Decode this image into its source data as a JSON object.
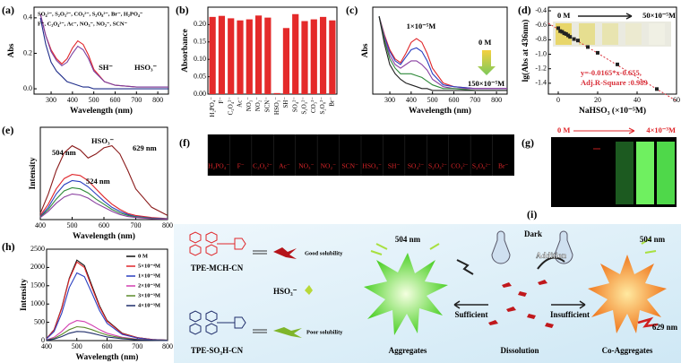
{
  "chart_data": [
    {
      "label": "(a)",
      "type": "line",
      "xlabel": "Wavelength (nm)",
      "ylabel": "Abs",
      "xlim": [
        220,
        850
      ],
      "xticks": [
        300,
        400,
        500,
        600,
        700,
        800
      ],
      "ylim": [
        -0.03,
        0.46
      ],
      "yticks": [
        {
          "value": 0,
          "label": "0.0"
        },
        0.2,
        0.4
      ],
      "annotations": [
        "SO₄²⁻, S₂O₃²⁻, CO₃²⁻, S₂O₈²⁻, Br⁻, H₂PO₄⁻",
        "F⁻, C₂O₄²⁻, Ac⁻, NO₃⁻, NO₂⁻, SCN⁻",
        "SH⁻",
        "HSO₃⁻"
      ],
      "x": [
        250,
        275,
        300,
        325,
        350,
        375,
        400,
        425,
        450,
        475,
        500,
        550,
        600,
        700,
        800,
        850
      ],
      "series": [
        {
          "color": "#e0262a",
          "values": [
            0.42,
            0.3,
            0.22,
            0.17,
            0.14,
            0.17,
            0.23,
            0.27,
            0.25,
            0.19,
            0.11,
            0.04,
            0.02,
            0.01,
            0.01,
            0.01
          ]
        },
        {
          "color": "#7a3fa0",
          "values": [
            0.42,
            0.3,
            0.21,
            0.16,
            0.13,
            0.15,
            0.2,
            0.24,
            0.22,
            0.17,
            0.1,
            0.04,
            0.02,
            0.01,
            0.01,
            0.01
          ]
        },
        {
          "color": "#1f2d8a",
          "values": [
            0.4,
            0.25,
            0.15,
            0.1,
            0.07,
            0.04,
            0.03,
            0.02,
            0.01,
            0.01,
            0,
            0,
            0,
            0,
            0,
            0
          ]
        }
      ]
    },
    {
      "label": "(b)",
      "type": "bar",
      "ylabel": "Absorbance",
      "color": "#e42a2a",
      "ylim": [
        0,
        0.25
      ],
      "yticks": [
        {
          "value": 0,
          "label": "0.00"
        },
        {
          "value": 0.05,
          "label": "0.05"
        },
        {
          "value": 0.1,
          "label": "0.10"
        },
        {
          "value": 0.15,
          "label": "0.15"
        },
        {
          "value": 0.2,
          "label": "0.20"
        }
      ],
      "categories": [
        "H₂PO₄⁻",
        "F⁻",
        "C₂O₄²⁻",
        "Ac⁻",
        "NO₃⁻",
        "NO₂⁻",
        "SCN⁻",
        "HSO₃⁻",
        "SH⁻",
        "SO₄²⁻",
        "S₂O₃²⁻",
        "CO₃²⁻",
        "S₂O₈²⁻",
        "Br⁻"
      ],
      "values": [
        0.222,
        0.225,
        0.218,
        0.212,
        0.215,
        0.226,
        0.22,
        0.003,
        0.19,
        0.23,
        0.21,
        0.215,
        0.222,
        0.212
      ]
    },
    {
      "label": "(c)",
      "type": "line",
      "xlabel": "Wavelength (nm)",
      "ylabel": "Abs",
      "xlim": [
        220,
        850
      ],
      "xticks": [
        300,
        400,
        500,
        600,
        700,
        800
      ],
      "ylim": [
        -0.02,
        0.45
      ],
      "annotations": [
        "1×10⁻⁵M",
        "0 M",
        "150×10⁻⁵M"
      ],
      "x": [
        250,
        275,
        300,
        325,
        350,
        375,
        400,
        425,
        450,
        475,
        500,
        550,
        600,
        700,
        800,
        850
      ],
      "series": [
        {
          "color": "#e0262a",
          "values": [
            0.4,
            0.3,
            0.22,
            0.17,
            0.15,
            0.2,
            0.26,
            0.28,
            0.26,
            0.2,
            0.12,
            0.04,
            0.02,
            0.01,
            0.01,
            0.01
          ]
        },
        {
          "color": "#2a3fc0",
          "values": [
            0.4,
            0.29,
            0.21,
            0.16,
            0.14,
            0.18,
            0.22,
            0.23,
            0.21,
            0.16,
            0.09,
            0.03,
            0.02,
            0.01,
            0.01,
            0.01
          ]
        },
        {
          "color": "#8a3fa0",
          "values": [
            0.4,
            0.28,
            0.19,
            0.14,
            0.12,
            0.14,
            0.16,
            0.16,
            0.14,
            0.11,
            0.06,
            0.02,
            0.01,
            0.01,
            0.01,
            0.01
          ]
        },
        {
          "color": "#2f8a3a",
          "values": [
            0.4,
            0.27,
            0.17,
            0.12,
            0.09,
            0.09,
            0.09,
            0.08,
            0.07,
            0.05,
            0.03,
            0.01,
            0.01,
            0,
            0,
            0
          ]
        },
        {
          "color": "#222222",
          "values": [
            0.4,
            0.25,
            0.14,
            0.09,
            0.06,
            0.04,
            0.03,
            0.02,
            0.01,
            0.01,
            0,
            0,
            0,
            0,
            0,
            0
          ]
        }
      ]
    },
    {
      "label": "(d)",
      "type": "scatter",
      "xlabel": "NaHSO₃ (×10⁻⁵M)",
      "ylabel": "lg(Abs at 436nm)",
      "color": "#222222",
      "fit_color": "#d9303a",
      "xlim": [
        -5,
        60
      ],
      "xticks": [
        0,
        20,
        40,
        60
      ],
      "ylim": [
        -1.55,
        -0.35
      ],
      "yticks": [
        -0.4,
        -0.6,
        -0.8,
        {
          "value": -1,
          "label": "-1.0"
        },
        -1.2,
        -1.4
      ],
      "annotations": [
        "0 M",
        "50×10⁻⁵M",
        "y=-0.0165*x-0.655,",
        "Adj.R-Square :0.989"
      ],
      "fit": {
        "slope": -0.0165,
        "intercept": -0.655
      },
      "x": [
        0,
        1,
        2,
        3,
        4,
        5,
        6,
        8,
        10,
        15,
        20,
        30,
        50
      ],
      "values": [
        -0.64,
        -0.68,
        -0.69,
        -0.71,
        -0.72,
        -0.74,
        -0.76,
        -0.79,
        -0.81,
        -0.9,
        -0.98,
        -1.14,
        -1.48
      ]
    },
    {
      "label": "(e)",
      "type": "line",
      "xlabel": "Wavelength (nm)",
      "ylabel": "Intensity",
      "xlim": [
        400,
        800
      ],
      "xticks": [
        400,
        500,
        600,
        700,
        800
      ],
      "ylim": [
        0,
        900
      ],
      "annotations": [
        "504 nm",
        "HSO₃⁻",
        "629 nm",
        "524 nm"
      ],
      "x": [
        400,
        425,
        450,
        475,
        500,
        525,
        550,
        575,
        600,
        625,
        650,
        675,
        700,
        750,
        800
      ],
      "series": [
        {
          "color": "#8a1a1a",
          "values": [
            60,
            250,
            480,
            650,
            720,
            680,
            600,
            640,
            700,
            720,
            640,
            480,
            300,
            120,
            40
          ]
        },
        {
          "color": "#e0262a",
          "values": [
            40,
            150,
            300,
            400,
            440,
            430,
            380,
            300,
            220,
            150,
            100,
            60,
            40,
            20,
            10
          ]
        },
        {
          "color": "#2a3fc0",
          "values": [
            30,
            120,
            250,
            340,
            380,
            370,
            320,
            250,
            180,
            120,
            80,
            50,
            30,
            15,
            8
          ]
        },
        {
          "color": "#2f8a3a",
          "values": [
            25,
            100,
            200,
            280,
            310,
            300,
            260,
            200,
            150,
            100,
            65,
            40,
            25,
            12,
            6
          ]
        },
        {
          "color": "#8a3fa0",
          "values": [
            20,
            80,
            160,
            220,
            250,
            240,
            210,
            160,
            120,
            80,
            50,
            30,
            20,
            10,
            5
          ]
        }
      ]
    },
    {
      "label": "(h)",
      "type": "line",
      "xlabel": "Wavelength (nm)",
      "ylabel": "Intensity",
      "legend": "upper right",
      "xlim": [
        400,
        800
      ],
      "xticks": [
        400,
        500,
        600,
        700,
        800
      ],
      "ylim": [
        0,
        2500
      ],
      "yticks": [
        0,
        500,
        1000,
        1500,
        2000,
        2500
      ],
      "x": [
        400,
        425,
        450,
        475,
        500,
        525,
        550,
        575,
        600,
        650,
        700,
        750,
        800
      ],
      "series": [
        {
          "name": "0 M",
          "color": "#111111",
          "values": [
            60,
            300,
            900,
            1700,
            2200,
            2050,
            1500,
            950,
            550,
            200,
            80,
            30,
            10
          ]
        },
        {
          "name": "5×10⁻⁴M",
          "color": "#e0262a",
          "values": [
            60,
            290,
            880,
            1680,
            2150,
            2000,
            1450,
            920,
            530,
            190,
            80,
            30,
            10
          ]
        },
        {
          "name": "1×10⁻³M",
          "color": "#2a3fc0",
          "values": [
            50,
            250,
            750,
            1450,
            1850,
            1750,
            1300,
            820,
            470,
            170,
            70,
            25,
            10
          ]
        },
        {
          "name": "2×10⁻³M",
          "color": "#d23fb0",
          "values": [
            20,
            90,
            250,
            450,
            550,
            520,
            420,
            300,
            200,
            90,
            40,
            15,
            5
          ]
        },
        {
          "name": "3×10⁻³M",
          "color": "#5a8a2a",
          "values": [
            15,
            60,
            170,
            300,
            380,
            360,
            300,
            220,
            150,
            70,
            30,
            12,
            5
          ]
        },
        {
          "name": "4×10⁻³M",
          "color": "#1f2d6a",
          "values": [
            10,
            40,
            110,
            200,
            250,
            240,
            200,
            150,
            100,
            50,
            20,
            8,
            3
          ]
        }
      ]
    }
  ],
  "panels": {
    "f": {
      "label": "(f)",
      "cells": [
        "H₂PO₄⁻",
        "F⁻",
        "C₂O₄²⁻",
        "Ac⁻",
        "NO₃⁻",
        "NO₂⁻",
        "SCN⁻",
        "HSO₃⁻",
        "SH⁻",
        "SO₄²⁻",
        "S₂O₃²⁻",
        "CO₃²⁻",
        "S₂O₈²⁻",
        "Br⁻"
      ]
    },
    "g": {
      "label": "(g)",
      "start": "0 M",
      "end": "4×10⁻³M"
    },
    "i": {
      "label": "(i)",
      "probe": "TPE-MCH-CN",
      "probe_note": "Good solubility",
      "analyte": "HSO₃⁻",
      "product": "TPE-SO₃H-CN",
      "product_note": "Poor solubility",
      "left_emission": "504 nm",
      "left_state": "Aggregates",
      "dark": "Dark",
      "addition": "Addition",
      "sufficient": "Sufficient",
      "insufficient": "Insufficient",
      "middle_state": "Dissolution",
      "right_emission": "504 nm",
      "right_emission2": "629 nm",
      "right_state": "Co-Aggregates"
    }
  }
}
